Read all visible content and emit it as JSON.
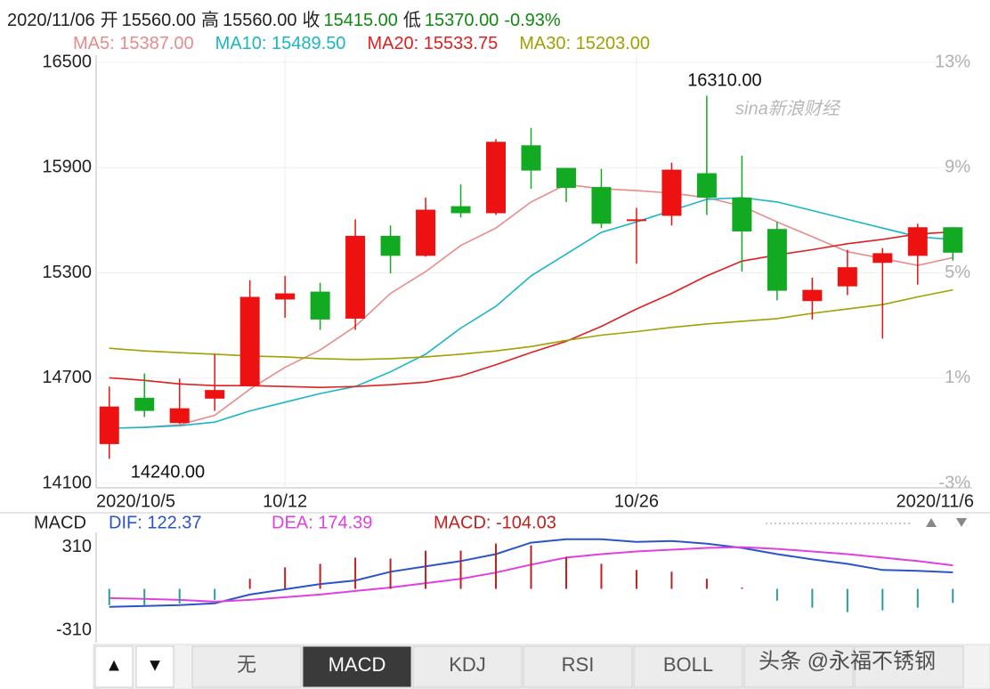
{
  "header": {
    "date": "2020/11/06",
    "items": [
      {
        "label": "开",
        "value": "15560.00",
        "color": "#222222"
      },
      {
        "label": "高",
        "value": "15560.00",
        "color": "#222222"
      },
      {
        "label": "收",
        "value": "15415.00",
        "color": "#118811"
      },
      {
        "label": "低",
        "value": "15370.00",
        "color": "#118811"
      }
    ],
    "change": "-0.93%",
    "change_color": "#118811"
  },
  "chart_data": [
    {
      "type": "candlestick",
      "categories": [
        "2020/10/5",
        null,
        null,
        null,
        null,
        "10/12",
        null,
        null,
        null,
        null,
        null,
        null,
        null,
        null,
        null,
        "10/26",
        null,
        null,
        null,
        null,
        null,
        null,
        null,
        null,
        "2020/11/6"
      ],
      "open": [
        14324,
        14588,
        14444,
        14583,
        14657,
        15148,
        15193,
        15039,
        15511,
        15397,
        15680,
        15640,
        16027,
        15898,
        15789,
        15595,
        15625,
        15868,
        15729,
        15550,
        15139,
        15223,
        15357,
        15397,
        15560
      ],
      "high": [
        14652,
        14726,
        14697,
        14836,
        15258,
        15282,
        15243,
        15605,
        15570,
        15729,
        15804,
        16062,
        16126,
        15898,
        15893,
        15670,
        15928,
        16310,
        15967,
        15590,
        15273,
        15431,
        15441,
        15580,
        15560
      ],
      "low": [
        14240,
        14478,
        14439,
        14513,
        14652,
        15044,
        14975,
        14975,
        15297,
        15392,
        15615,
        15630,
        15779,
        15704,
        15555,
        15352,
        15570,
        15630,
        15307,
        15143,
        15034,
        15173,
        14925,
        15233,
        15370
      ],
      "close": [
        14538,
        14513,
        14528,
        14632,
        15163,
        15183,
        15034,
        15511,
        15397,
        15660,
        15640,
        16047,
        15883,
        15784,
        15580,
        15605,
        15888,
        15729,
        15536,
        15198,
        15203,
        15332,
        15412,
        15560,
        15415
      ],
      "up_color": "#ee1111",
      "down_color": "#11aa22",
      "series": [
        {
          "name": "MA5: 15387.00",
          "color": "#e88b8b",
          "values": [
            14414,
            14419,
            14434,
            14488,
            14637,
            14761,
            14860,
            14995,
            15183,
            15307,
            15456,
            15555,
            15704,
            15804,
            15779,
            15769,
            15754,
            15729,
            15680,
            15590,
            15506,
            15421,
            15382,
            15342,
            15387
          ]
        },
        {
          "name": "MA10: 15489.50",
          "color": "#18b6c8",
          "values": [
            14414,
            14419,
            14429,
            14449,
            14513,
            14563,
            14612,
            14652,
            14736,
            14836,
            14985,
            15109,
            15283,
            15407,
            15531,
            15590,
            15655,
            15719,
            15729,
            15704,
            15655,
            15605,
            15555,
            15506,
            15489.5
          ]
        },
        {
          "name": "MA20: 15533.75",
          "color": "#e02020",
          "values": [
            14702,
            14687,
            14667,
            14657,
            14657,
            14652,
            14647,
            14652,
            14662,
            14677,
            14712,
            14776,
            14846,
            14910,
            14995,
            15094,
            15183,
            15283,
            15367,
            15402,
            15432,
            15466,
            15491,
            15521,
            15533.75
          ]
        },
        {
          "name": "MA30: 15203.00",
          "color": "#a0a000",
          "values": [
            14870,
            14855,
            14845,
            14836,
            14826,
            14821,
            14811,
            14806,
            14811,
            14821,
            14836,
            14855,
            14880,
            14915,
            14945,
            14965,
            14989,
            15009,
            15024,
            15039,
            15069,
            15094,
            15119,
            15163,
            15203
          ]
        }
      ],
      "annotations": [
        {
          "label": "16310.00",
          "value": 16310
        },
        {
          "label": "14240.00",
          "value": 14240
        }
      ],
      "ylim": [
        14100,
        16500
      ],
      "yticks": [
        14100,
        14700,
        15300,
        15900,
        16500
      ],
      "y2lim": [
        -3,
        13
      ],
      "y2ticks": [
        {
          "value": -3,
          "label": "-3%"
        },
        {
          "value": 1,
          "label": "1%"
        },
        {
          "value": 5,
          "label": "5%"
        },
        {
          "value": 9,
          "label": "9%"
        },
        {
          "value": 13,
          "label": "13%"
        }
      ],
      "grid": true
    },
    {
      "type": "macd",
      "title": "MACD",
      "series": [
        {
          "name": "DIF: 122.37",
          "type": "line",
          "color": "#2a55c8",
          "values": [
            -134,
            -127,
            -121,
            -108,
            -42,
            -3,
            36,
            62,
            127,
            167,
            206,
            258,
            343,
            369,
            369,
            349,
            356,
            336,
            304,
            258,
            219,
            186,
            140,
            134,
            122.37
          ]
        },
        {
          "name": "DEA: 174.39",
          "type": "line",
          "color": "#e040e0",
          "values": [
            -69,
            -75,
            -82,
            -95,
            -82,
            -62,
            -42,
            -16,
            10,
            42,
            75,
            121,
            180,
            232,
            258,
            278,
            291,
            304,
            310,
            297,
            278,
            258,
            232,
            206,
            174.39
          ]
        },
        {
          "name": "MACD: -104.03",
          "type": "bar",
          "color": "#c02020",
          "neg_color": "#2f9a9a",
          "values": [
            -121,
            -121,
            -108,
            -82,
            75,
            160,
            186,
            232,
            225,
            284,
            284,
            336,
            323,
            238,
            186,
            140,
            127,
            75,
            10,
            -88,
            -140,
            -173,
            -160,
            -140,
            -104.03
          ]
        }
      ],
      "ylim": [
        -400,
        400
      ],
      "yticks": [
        -310,
        310
      ]
    }
  ],
  "watermarks": [
    "sina新浪财经",
    "头条 @永福不锈钢"
  ],
  "toolbar": {
    "buttons": [
      "▲",
      "▼"
    ],
    "tabs": [
      "无",
      "MACD",
      "KDJ",
      "RSI",
      "BOLL",
      null,
      null
    ],
    "active_index": 1
  }
}
